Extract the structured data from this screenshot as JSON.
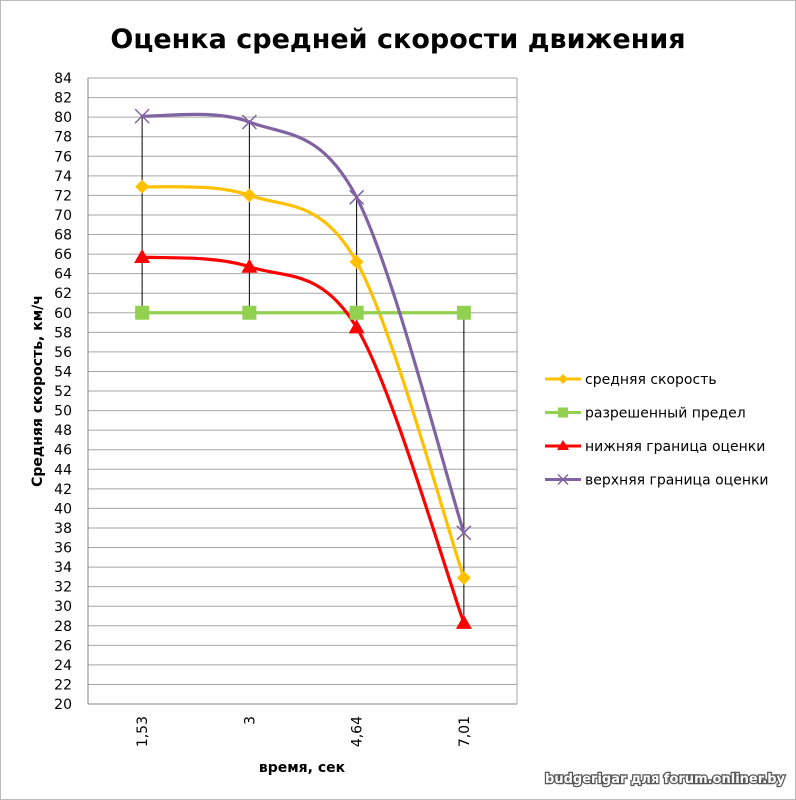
{
  "chart_data": {
    "type": "line",
    "title": "Оценка средней скорости движения",
    "xlabel": "время, сек",
    "ylabel": "Средняя скорость, км/ч",
    "categories": [
      "1,53",
      "3",
      "4,64",
      "7,01"
    ],
    "ylim": [
      20,
      84
    ],
    "ytick_step": 2,
    "grid": true,
    "legend_position": "right",
    "high_low_lines": true,
    "smoothed": true,
    "series": [
      {
        "name": "средняя скорость",
        "values": [
          72.9,
          72.0,
          65.2,
          32.9
        ],
        "color": "#FFC000",
        "marker": "diamond"
      },
      {
        "name": "разрешенный предел",
        "values": [
          60,
          60,
          60,
          60
        ],
        "color": "#92D050",
        "marker": "square"
      },
      {
        "name": "нижняя граница оценки",
        "values": [
          65.7,
          64.7,
          58.5,
          28.3
        ],
        "color": "#FF0000",
        "marker": "triangle"
      },
      {
        "name": "верхняя граница оценки",
        "values": [
          80.1,
          79.5,
          71.8,
          37.5
        ],
        "color": "#8064A2",
        "marker": "x"
      }
    ]
  },
  "watermark": "budgerigar для forum.onliner.by"
}
